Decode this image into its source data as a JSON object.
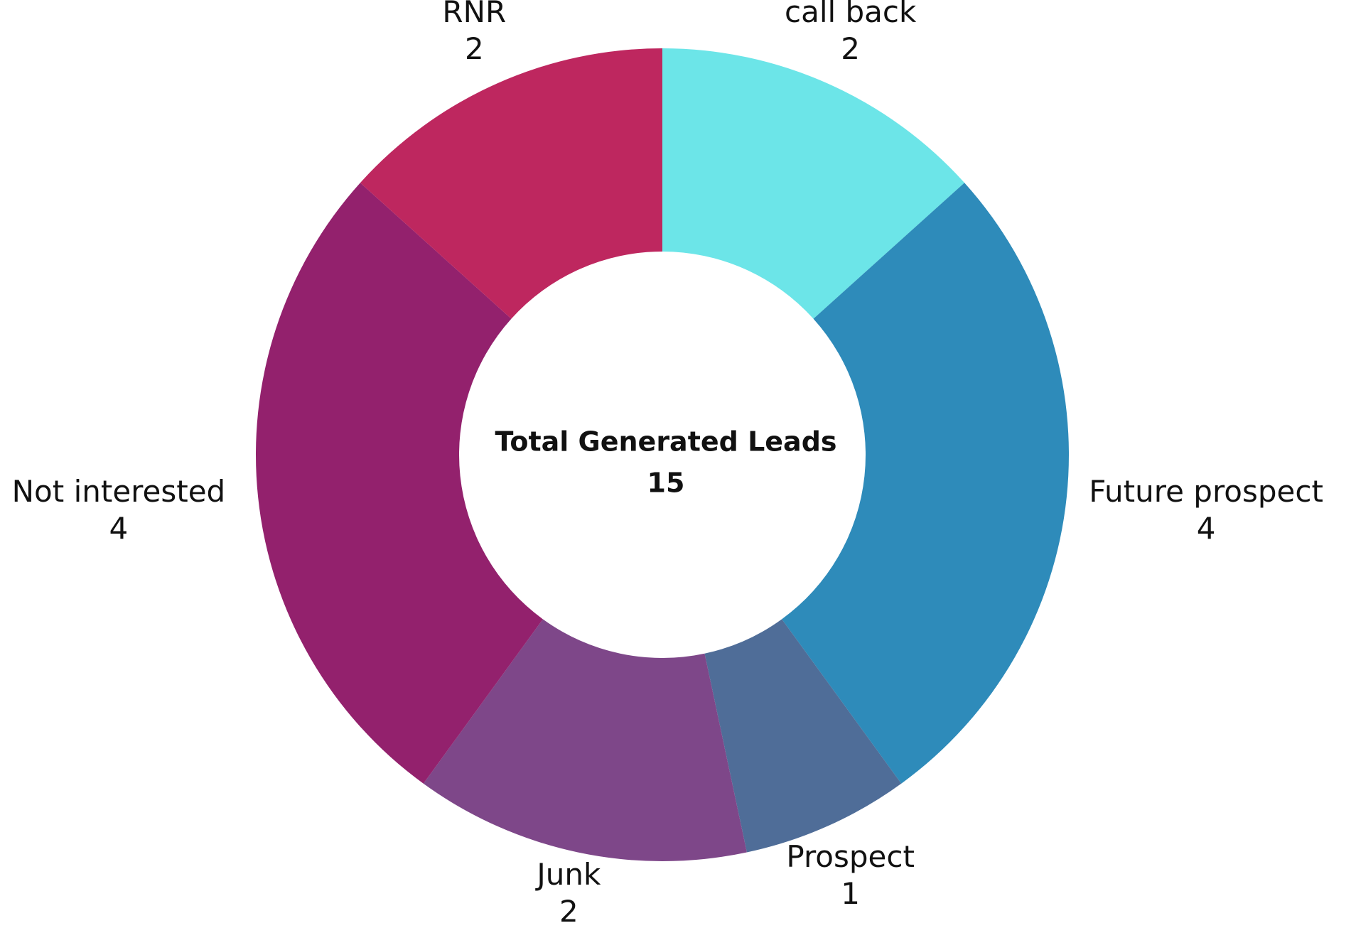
{
  "chart_data": {
    "type": "donut",
    "center_title": "Total Generated Leads",
    "total": 15,
    "categories": [
      "call back",
      "Future prospect",
      "Prospect",
      "Junk",
      "Not interested",
      "RNR"
    ],
    "values": [
      2,
      4,
      1,
      2,
      4,
      2
    ],
    "colors": [
      "#6ce5e8",
      "#2e8bba",
      "#4f6d98",
      "#7e4789",
      "#93216d",
      "#be275f"
    ]
  }
}
